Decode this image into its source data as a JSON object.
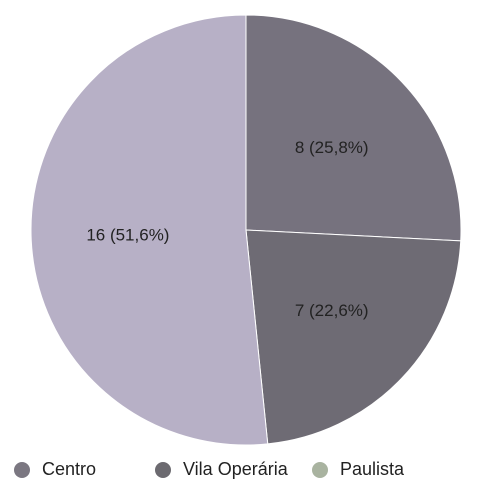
{
  "chart_data": {
    "type": "pie",
    "categories": [
      "Centro",
      "Vila Operária",
      "Paulista"
    ],
    "values": [
      8,
      7,
      16
    ],
    "data_labels": [
      "8 (25,8%)",
      "7 (22,6%)",
      "16 (51,6%)"
    ],
    "colors": [
      "#76727e",
      "#6e6b74",
      "#b7b0c6"
    ],
    "legend_colors": [
      "#7b7781",
      "#6c6a70",
      "#a9b3a0"
    ],
    "legend_position": "bottom",
    "start_angle_deg": 0,
    "direction": "clockwise"
  }
}
